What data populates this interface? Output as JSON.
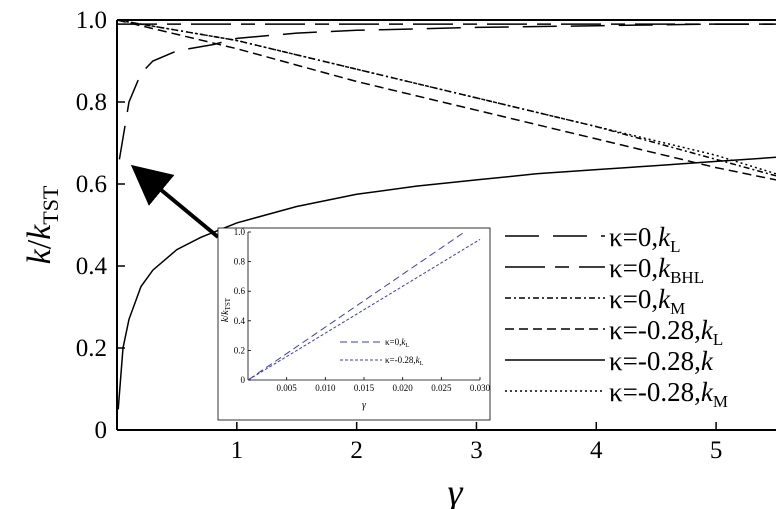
{
  "chart_data": [
    {
      "type": "line",
      "xlabel": "γ",
      "ylabel_main": "k",
      "ylabel_sep": "/",
      "ylabel_k": "k",
      "ylabel_sub": "TST",
      "xlim": [
        0,
        5.5
      ],
      "ylim": [
        0,
        1.0
      ],
      "xticks": [
        "1",
        "2",
        "3",
        "4",
        "5"
      ],
      "yticks": [
        "0",
        "0.2",
        "0.4",
        "0.6",
        "0.8",
        "1.0"
      ],
      "grid": false,
      "legend_position": "right",
      "series": [
        {
          "name": "κ=0,k_L",
          "label_pre": "κ=0,",
          "label_k": "k",
          "label_sub": "L",
          "dash": "long",
          "x": [
            0.02,
            0.1,
            0.2,
            0.3,
            0.5,
            0.8,
            1.0,
            1.5,
            2.0,
            3.0,
            4.0,
            5.0,
            5.5
          ],
          "y": [
            0.66,
            0.8,
            0.87,
            0.9,
            0.925,
            0.94,
            0.955,
            0.968,
            0.975,
            0.982,
            0.986,
            0.99,
            0.99
          ]
        },
        {
          "name": "κ=0,k_BHL",
          "label_pre": "κ=0,",
          "label_k": "k",
          "label_sub": "BHL",
          "dash": "longshort",
          "x": [
            0.0,
            0.2,
            0.5,
            0.8,
            1.0,
            2.0,
            3.0,
            4.0,
            5.0,
            5.5
          ],
          "y": [
            0.99,
            0.99,
            0.99,
            0.99,
            0.99,
            0.99,
            0.99,
            0.99,
            0.99,
            0.99
          ]
        },
        {
          "name": "κ=0,k_M",
          "label_pre": "κ=0,",
          "label_k": "k",
          "label_sub": "M",
          "dash": "dashdot",
          "x": [
            0.0,
            1.0,
            2.0,
            3.0,
            4.0,
            5.0,
            5.5
          ],
          "y": [
            1.0,
            0.95,
            0.88,
            0.81,
            0.74,
            0.66,
            0.62
          ]
        },
        {
          "name": "κ=-0.28,k_L",
          "label_pre": "κ=-0.28,",
          "label_k": "k",
          "label_sub": "L",
          "dash": "short",
          "x": [
            0.0,
            1.0,
            2.0,
            3.0,
            4.0,
            5.0,
            5.5
          ],
          "y": [
            1.0,
            0.93,
            0.85,
            0.78,
            0.71,
            0.64,
            0.61
          ]
        },
        {
          "name": "κ=-0.28,k",
          "label_pre": "κ=-0.28,",
          "label_k": "k",
          "label_sub": "",
          "dash": "solid",
          "x": [
            0.01,
            0.05,
            0.1,
            0.2,
            0.3,
            0.5,
            0.7,
            1.0,
            1.5,
            2.0,
            2.5,
            3.0,
            3.5,
            4.0,
            4.5,
            5.0,
            5.5
          ],
          "y": [
            0.05,
            0.2,
            0.27,
            0.35,
            0.39,
            0.44,
            0.47,
            0.505,
            0.545,
            0.575,
            0.595,
            0.61,
            0.625,
            0.635,
            0.645,
            0.655,
            0.665
          ]
        },
        {
          "name": "κ=-0.28,k_M",
          "label_pre": "κ=-0.28,",
          "label_k": "k",
          "label_sub": "M",
          "dash": "dot",
          "x": [
            0.0,
            1.0,
            2.0,
            3.0,
            4.0,
            5.0,
            5.5
          ],
          "y": [
            1.0,
            0.95,
            0.88,
            0.81,
            0.74,
            0.67,
            0.625
          ]
        }
      ]
    },
    {
      "type": "line",
      "xlabel": "γ",
      "ylabel_k": "k",
      "ylabel_sep": "/",
      "ylabel_k2": "k",
      "ylabel_sub": "TST",
      "xlim": [
        0,
        0.03
      ],
      "ylim": [
        0,
        1.0
      ],
      "xticks": [
        "0.005",
        "0.010",
        "0.015",
        "0.020",
        "0.025",
        "0.030"
      ],
      "yticks": [
        "0",
        "0.2",
        "0.4",
        "0.6",
        "0.8",
        "1.0"
      ],
      "grid": false,
      "legend_position": "bottom-right",
      "series": [
        {
          "name": "κ=0,k_L",
          "label_pre": "κ=0,",
          "label_k": "k",
          "label_sub": "L",
          "color": "#3a3ad0",
          "x": [
            0.0,
            0.028
          ],
          "y": [
            0.0,
            1.0
          ]
        },
        {
          "name": "κ=-0.28,k_L",
          "label_pre": "κ=-0.28,",
          "label_k": "k",
          "label_sub": "L",
          "color": "#3a3ad0",
          "x": [
            0.0,
            0.03
          ],
          "y": [
            0.0,
            0.95
          ]
        }
      ]
    }
  ]
}
